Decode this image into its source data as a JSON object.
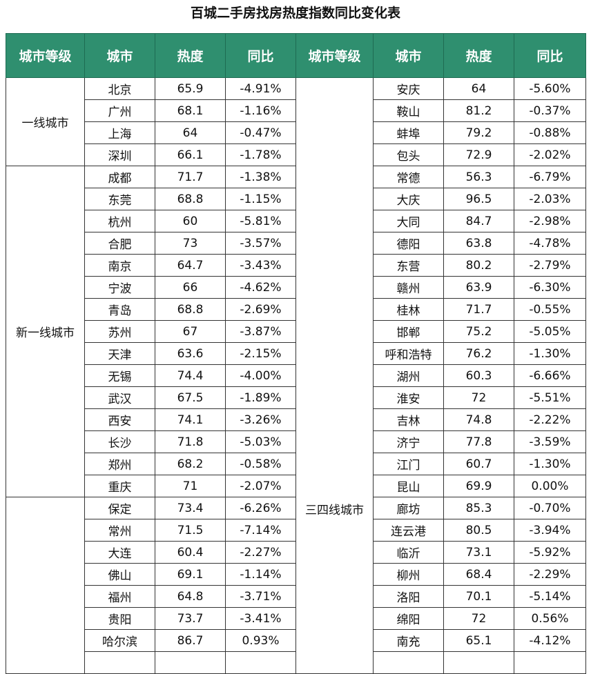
{
  "title": "百城二手房找房热度指数同比变化表",
  "headers": [
    "城市等级",
    "城市",
    "热度",
    "同比",
    "城市等级",
    "城市",
    "热度",
    "同比"
  ],
  "left_groups": [
    {
      "tier": "一线城市",
      "rows": [
        [
          "北京",
          "65.9",
          "-4.91%"
        ],
        [
          "广州",
          "68.1",
          "-1.16%"
        ],
        [
          "上海",
          "64",
          "-0.47%"
        ],
        [
          "深圳",
          "66.1",
          "-1.78%"
        ]
      ]
    },
    {
      "tier": "新一线城市",
      "rows": [
        [
          "成都",
          "71.7",
          "-1.38%"
        ],
        [
          "东莞",
          "68.8",
          "-1.15%"
        ],
        [
          "杭州",
          "60",
          "-5.81%"
        ],
        [
          "合肥",
          "73",
          "-3.57%"
        ],
        [
          "南京",
          "64.7",
          "-3.43%"
        ],
        [
          "宁波",
          "66",
          "-4.62%"
        ],
        [
          "青岛",
          "68.8",
          "-2.69%"
        ],
        [
          "苏州",
          "67",
          "-3.87%"
        ],
        [
          "天津",
          "63.6",
          "-2.15%"
        ],
        [
          "无锡",
          "74.4",
          "-4.00%"
        ],
        [
          "武汉",
          "67.5",
          "-1.89%"
        ],
        [
          "西安",
          "74.1",
          "-3.26%"
        ],
        [
          "长沙",
          "71.8",
          "-5.03%"
        ],
        [
          "郑州",
          "68.2",
          "-0.58%"
        ],
        [
          "重庆",
          "71",
          "-2.07%"
        ]
      ]
    },
    {
      "tier": "",
      "rows": [
        [
          "保定",
          "73.4",
          "-6.26%"
        ],
        [
          "常州",
          "71.5",
          "-7.14%"
        ],
        [
          "大连",
          "60.4",
          "-2.27%"
        ],
        [
          "佛山",
          "69.1",
          "-1.14%"
        ],
        [
          "福州",
          "64.8",
          "-3.71%"
        ],
        [
          "贵阳",
          "73.7",
          "-3.41%"
        ],
        [
          "哈尔滨",
          "86.7",
          "0.93%"
        ],
        [
          "",
          "",
          ""
        ]
      ]
    }
  ],
  "right_group": {
    "tier": "三四线城市",
    "rows": [
      [
        "安庆",
        "64",
        "-5.60%"
      ],
      [
        "鞍山",
        "81.2",
        "-0.37%"
      ],
      [
        "蚌埠",
        "79.2",
        "-0.88%"
      ],
      [
        "包头",
        "72.9",
        "-2.02%"
      ],
      [
        "常德",
        "56.3",
        "-6.79%"
      ],
      [
        "大庆",
        "96.5",
        "-2.03%"
      ],
      [
        "大同",
        "84.7",
        "-2.98%"
      ],
      [
        "德阳",
        "63.8",
        "-4.78%"
      ],
      [
        "东营",
        "80.2",
        "-2.79%"
      ],
      [
        "赣州",
        "63.9",
        "-6.30%"
      ],
      [
        "桂林",
        "71.7",
        "-0.55%"
      ],
      [
        "邯郸",
        "75.2",
        "-5.05%"
      ],
      [
        "呼和浩特",
        "76.2",
        "-1.30%"
      ],
      [
        "湖州",
        "60.3",
        "-6.66%"
      ],
      [
        "淮安",
        "72",
        "-5.51%"
      ],
      [
        "吉林",
        "74.8",
        "-2.22%"
      ],
      [
        "济宁",
        "77.8",
        "-3.59%"
      ],
      [
        "江门",
        "60.7",
        "-1.30%"
      ],
      [
        "昆山",
        "69.9",
        "0.00%"
      ],
      [
        "廊坊",
        "85.3",
        "-0.70%"
      ],
      [
        "连云港",
        "80.5",
        "-3.94%"
      ],
      [
        "临沂",
        "73.1",
        "-5.92%"
      ],
      [
        "柳州",
        "68.4",
        "-2.29%"
      ],
      [
        "洛阳",
        "70.1",
        "-5.14%"
      ],
      [
        "绵阳",
        "72",
        "0.56%"
      ],
      [
        "南充",
        "65.1",
        "-4.12%"
      ],
      [
        "",
        "",
        ""
      ]
    ]
  },
  "colors": {
    "header_bg": "#2f8f6f",
    "header_text": "#ffffff"
  }
}
